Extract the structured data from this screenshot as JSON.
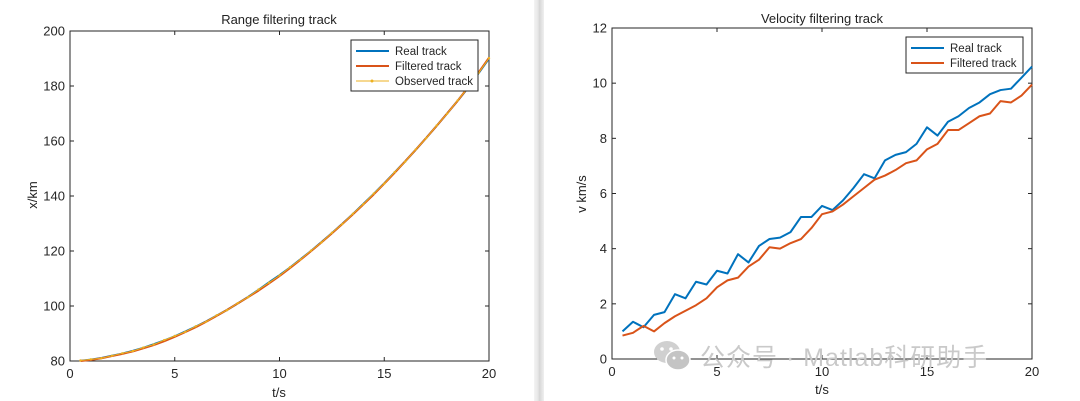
{
  "colors": {
    "real": "#0072BD",
    "filtered": "#D95319",
    "observed": "#EDB120"
  },
  "watermark": {
    "text": "公众号 · Matlab科研助手",
    "icon": "wechat-icon"
  },
  "chart_data": [
    {
      "type": "line",
      "title": "Range filtering track",
      "xlabel": "t/s",
      "ylabel": "x/km",
      "xlim": [
        0,
        20
      ],
      "ylim": [
        80,
        200
      ],
      "xticks": [
        0,
        5,
        10,
        15,
        20
      ],
      "yticks": [
        80,
        100,
        120,
        140,
        160,
        180,
        200
      ],
      "legend": "top-right",
      "grid": false,
      "x": [
        0.5,
        1,
        1.5,
        2,
        2.5,
        3,
        3.5,
        4,
        4.5,
        5,
        5.5,
        6,
        6.5,
        7,
        7.5,
        8,
        8.5,
        9,
        9.5,
        10,
        10.5,
        11,
        11.5,
        12,
        12.5,
        13,
        13.5,
        14,
        14.5,
        15,
        15.5,
        16,
        16.5,
        17,
        17.5,
        18,
        18.5,
        19,
        19.5,
        20
      ],
      "series": [
        {
          "name": "Real track",
          "color_key": "real",
          "values": [
            80.1,
            80.5,
            81.1,
            81.9,
            82.7,
            83.7,
            84.8,
            86.1,
            87.5,
            89.0,
            90.7,
            92.5,
            94.4,
            96.5,
            98.6,
            100.9,
            103.3,
            105.9,
            108.6,
            111.2,
            114.0,
            117.0,
            120.0,
            123.2,
            126.5,
            129.9,
            133.4,
            137.1,
            140.8,
            144.6,
            148.6,
            152.6,
            156.8,
            161.1,
            165.5,
            170.0,
            174.6,
            179.3,
            184.6,
            190.0
          ]
        },
        {
          "name": "Filtered track",
          "color_key": "filtered",
          "values": [
            80.0,
            80.4,
            81.0,
            81.8,
            82.6,
            83.5,
            84.6,
            85.8,
            87.2,
            88.8,
            90.5,
            92.3,
            94.3,
            96.4,
            98.6,
            100.9,
            103.2,
            105.6,
            108.2,
            110.9,
            113.8,
            116.8,
            119.9,
            123.1,
            126.4,
            129.8,
            133.3,
            136.9,
            140.6,
            144.5,
            148.5,
            152.6,
            156.8,
            161.1,
            165.5,
            170.0,
            174.6,
            179.5,
            184.9,
            190.3
          ]
        },
        {
          "name": "Observed track",
          "color_key": "observed",
          "values": [
            80.2,
            80.6,
            81.0,
            81.9,
            82.8,
            83.6,
            84.9,
            86.0,
            87.6,
            89.1,
            90.6,
            92.6,
            94.3,
            96.6,
            98.5,
            101.0,
            103.2,
            106.0,
            108.5,
            111.1,
            114.1,
            116.9,
            120.1,
            123.1,
            126.6,
            129.8,
            133.5,
            137.0,
            140.9,
            144.5,
            148.7,
            152.5,
            156.9,
            161.0,
            165.6,
            169.9,
            174.7,
            179.4,
            184.7,
            190.1
          ]
        }
      ]
    },
    {
      "type": "line",
      "title": "Velocity filtering track",
      "xlabel": "t/s",
      "ylabel": "v km/s",
      "xlim": [
        0,
        20
      ],
      "ylim": [
        0,
        12
      ],
      "xticks": [
        0,
        5,
        10,
        15,
        20
      ],
      "yticks": [
        0,
        2,
        4,
        6,
        8,
        10,
        12
      ],
      "legend": "top-right",
      "grid": false,
      "x": [
        0.5,
        1,
        1.5,
        2,
        2.5,
        3,
        3.5,
        4,
        4.5,
        5,
        5.5,
        6,
        6.5,
        7,
        7.5,
        8,
        8.5,
        9,
        9.5,
        10,
        10.5,
        11,
        11.5,
        12,
        12.5,
        13,
        13.5,
        14,
        14.5,
        15,
        15.5,
        16,
        16.5,
        17,
        17.5,
        18,
        18.5,
        19,
        19.5,
        20
      ],
      "series": [
        {
          "name": "Real track",
          "color_key": "real",
          "values": [
            1.0,
            1.35,
            1.15,
            1.6,
            1.7,
            2.35,
            2.2,
            2.8,
            2.7,
            3.2,
            3.1,
            3.8,
            3.5,
            4.1,
            4.35,
            4.4,
            4.6,
            5.15,
            5.15,
            5.55,
            5.4,
            5.75,
            6.2,
            6.7,
            6.55,
            7.2,
            7.4,
            7.5,
            7.8,
            8.4,
            8.1,
            8.6,
            8.8,
            9.1,
            9.3,
            9.6,
            9.75,
            9.8,
            10.2,
            10.6
          ]
        },
        {
          "name": "Filtered track",
          "color_key": "filtered",
          "values": [
            0.85,
            0.95,
            1.2,
            1.0,
            1.3,
            1.55,
            1.75,
            1.95,
            2.2,
            2.6,
            2.85,
            2.95,
            3.35,
            3.6,
            4.05,
            4.0,
            4.2,
            4.35,
            4.75,
            5.25,
            5.35,
            5.6,
            5.9,
            6.2,
            6.5,
            6.65,
            6.85,
            7.1,
            7.2,
            7.6,
            7.8,
            8.3,
            8.3,
            8.55,
            8.8,
            8.9,
            9.35,
            9.3,
            9.55,
            9.95
          ]
        }
      ]
    }
  ]
}
